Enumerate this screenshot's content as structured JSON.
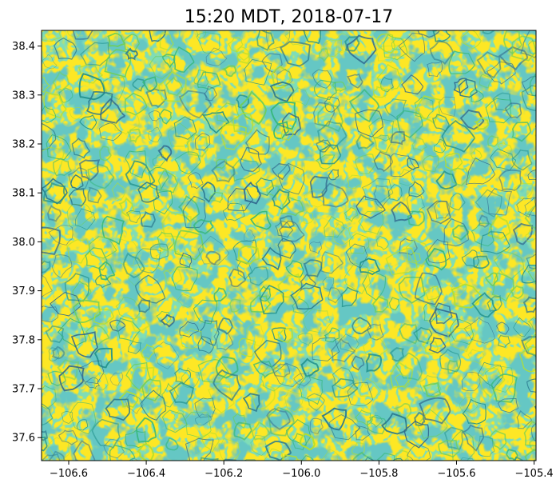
{
  "chart_data": {
    "type": "heatmap",
    "title": "15:20 MDT, 2018-07-17",
    "xlabel": "",
    "ylabel": "",
    "xlim": [
      -106.67,
      -105.395
    ],
    "ylim": [
      37.553,
      38.432
    ],
    "x_ticks": [
      -106.6,
      -106.4,
      -106.2,
      -106.0,
      -105.8,
      -105.6,
      -105.4
    ],
    "x_tick_labels": [
      "−106.6",
      "−106.4",
      "−106.2",
      "−106.0",
      "−105.8",
      "−105.6",
      "−105.4"
    ],
    "y_ticks": [
      37.6,
      37.7,
      37.8,
      37.9,
      38.0,
      38.1,
      38.2,
      38.3,
      38.4
    ],
    "y_tick_labels": [
      "37.6",
      "37.7",
      "37.8",
      "37.9",
      "38.0",
      "38.1",
      "38.2",
      "38.3",
      "38.4"
    ],
    "colormap": "viridis",
    "background_color": "#fde725",
    "line_colors": [
      "#21918c",
      "#2a788e",
      "#35b779",
      "#31688e",
      "#6ece58",
      "#b5de2b"
    ],
    "grid": false,
    "legend": "none"
  }
}
